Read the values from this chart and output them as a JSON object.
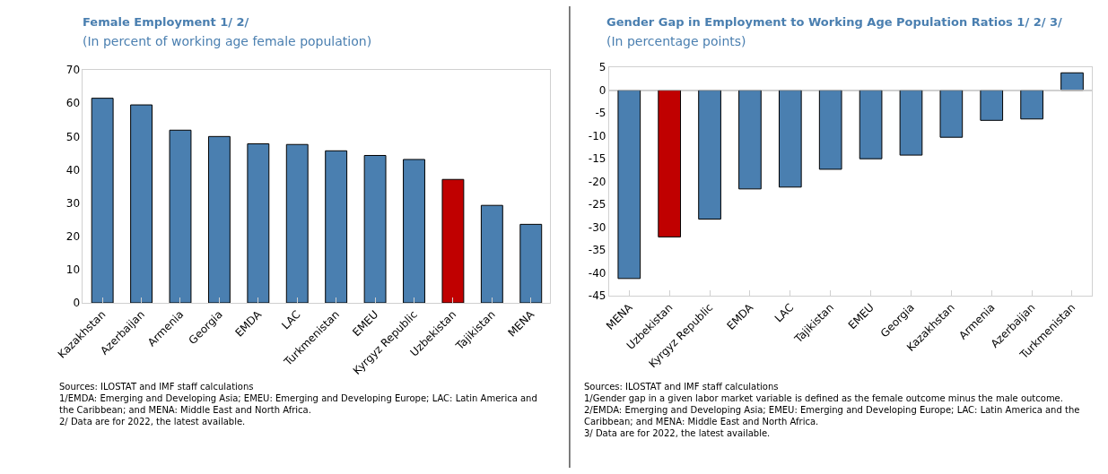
{
  "chart_data": [
    {
      "type": "bar",
      "title": "Female Employment 1/ 2/",
      "subtitle": "(In percent of working age female population)",
      "categories": [
        "Kazakhstan",
        "Azerbaijan",
        "Armenia",
        "Georgia",
        "EMDA",
        "LAC",
        "Turkmenistan",
        "EMEU",
        "Kyrgyz Republic",
        "Uzbekistan",
        "Tajikistan",
        "MENA"
      ],
      "values": [
        61.5,
        59.5,
        51.9,
        50.0,
        47.8,
        47.6,
        45.7,
        44.3,
        43.1,
        37.1,
        29.3,
        23.6
      ],
      "colors": [
        "#4a7fb0",
        "#4a7fb0",
        "#4a7fb0",
        "#4a7fb0",
        "#4a7fb0",
        "#4a7fb0",
        "#4a7fb0",
        "#4a7fb0",
        "#4a7fb0",
        "#c00000",
        "#4a7fb0",
        "#4a7fb0"
      ],
      "ylim": [
        0,
        70
      ],
      "yticks": [
        0,
        10,
        20,
        30,
        40,
        50,
        60,
        70
      ],
      "grid": false,
      "annotations": [
        "Sources: ILOSTAT and IMF staff calculations",
        "1/EMDA: Emerging and Developing Asia; EMEU: Emerging and Developing Europe; LAC: Latin America and the Caribbean; and MENA: Middle East and North Africa.",
        "2/ Data are for 2022, the latest available."
      ]
    },
    {
      "type": "bar",
      "title": "Gender Gap in Employment to Working Age Population Ratios 1/ 2/ 3/",
      "subtitle": "(In percentage points)",
      "categories": [
        "MENA",
        "Uzbekistan",
        "Kyrgyz Republic",
        "EMDA",
        "LAC",
        "Tajikistan",
        "EMEU",
        "Georgia",
        "Kazakhstan",
        "Armenia",
        "Azerbaijan",
        "Turkmenistan"
      ],
      "values": [
        -41.2,
        -32.1,
        -28.2,
        -21.6,
        -21.2,
        -17.3,
        -15.0,
        -14.2,
        -10.3,
        -6.6,
        -6.3,
        3.8
      ],
      "colors": [
        "#4a7fb0",
        "#c00000",
        "#4a7fb0",
        "#4a7fb0",
        "#4a7fb0",
        "#4a7fb0",
        "#4a7fb0",
        "#4a7fb0",
        "#4a7fb0",
        "#4a7fb0",
        "#4a7fb0",
        "#4a7fb0"
      ],
      "ylim": [
        -45,
        5
      ],
      "yticks": [
        -45,
        -40,
        -35,
        -30,
        -25,
        -20,
        -15,
        -10,
        -5,
        0,
        5
      ],
      "grid": false,
      "annotations": [
        "Sources: ILOSTAT and IMF staff calculations",
        "1/Gender gap in a given labor market variable is defined as the female outcome minus the male outcome.",
        "2/EMDA: Emerging and Developing Asia; EMEU: Emerging and Developing Europe; LAC: Latin America and the Caribbean; and MENA: Middle East and North Africa.",
        "3/ Data are for 2022, the latest available."
      ]
    }
  ]
}
